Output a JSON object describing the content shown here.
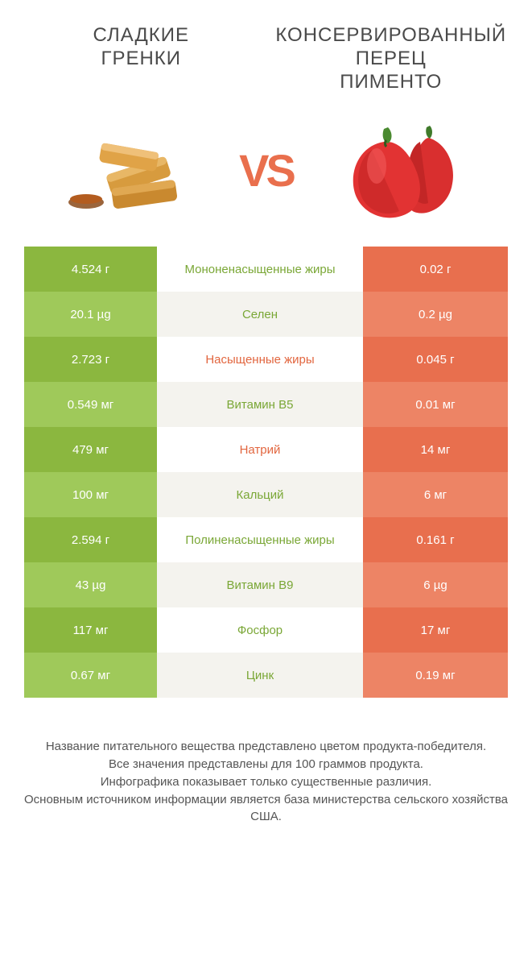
{
  "titles": {
    "left": "СЛАДКИЕ\nГРЕНКИ",
    "right": "КОНСЕРВИРОВАННЫЙ\nПЕРЕЦ\nПИМЕНТО"
  },
  "vs": "VS",
  "colors": {
    "green_dark": "#8bb73f",
    "green_light": "#9fc95a",
    "orange_dark": "#e86f4e",
    "orange_light": "#ed8465",
    "mid_even": "#ffffff",
    "mid_odd": "#f4f3ee",
    "label_green": "#7aa736",
    "label_orange": "#e2663f",
    "title_color": "#4a4a4a",
    "vs_color": "#e96f4d"
  },
  "rows": [
    {
      "left": "4.524 г",
      "label": "Мононенасыщенные жиры",
      "right": "0.02 г",
      "winner": "left"
    },
    {
      "left": "20.1 µg",
      "label": "Селен",
      "right": "0.2 µg",
      "winner": "left"
    },
    {
      "left": "2.723 г",
      "label": "Насыщенные жиры",
      "right": "0.045 г",
      "winner": "right"
    },
    {
      "left": "0.549 мг",
      "label": "Витамин B5",
      "right": "0.01 мг",
      "winner": "left"
    },
    {
      "left": "479 мг",
      "label": "Натрий",
      "right": "14 мг",
      "winner": "right"
    },
    {
      "left": "100 мг",
      "label": "Кальций",
      "right": "6 мг",
      "winner": "left"
    },
    {
      "left": "2.594 г",
      "label": "Полиненасыщенные жиры",
      "right": "0.161 г",
      "winner": "left"
    },
    {
      "left": "43 µg",
      "label": "Витамин B9",
      "right": "6 µg",
      "winner": "left"
    },
    {
      "left": "117 мг",
      "label": "Фосфор",
      "right": "17 мг",
      "winner": "left"
    },
    {
      "left": "0.67 мг",
      "label": "Цинк",
      "right": "0.19 мг",
      "winner": "left"
    }
  ],
  "footer": "Название питательного вещества представлено цветом продукта-победителя.\nВсе значения представлены для 100 граммов продукта.\nИнфографика показывает только существенные различия.\nОсновным источником информации является база министерства сельского хозяйства США."
}
